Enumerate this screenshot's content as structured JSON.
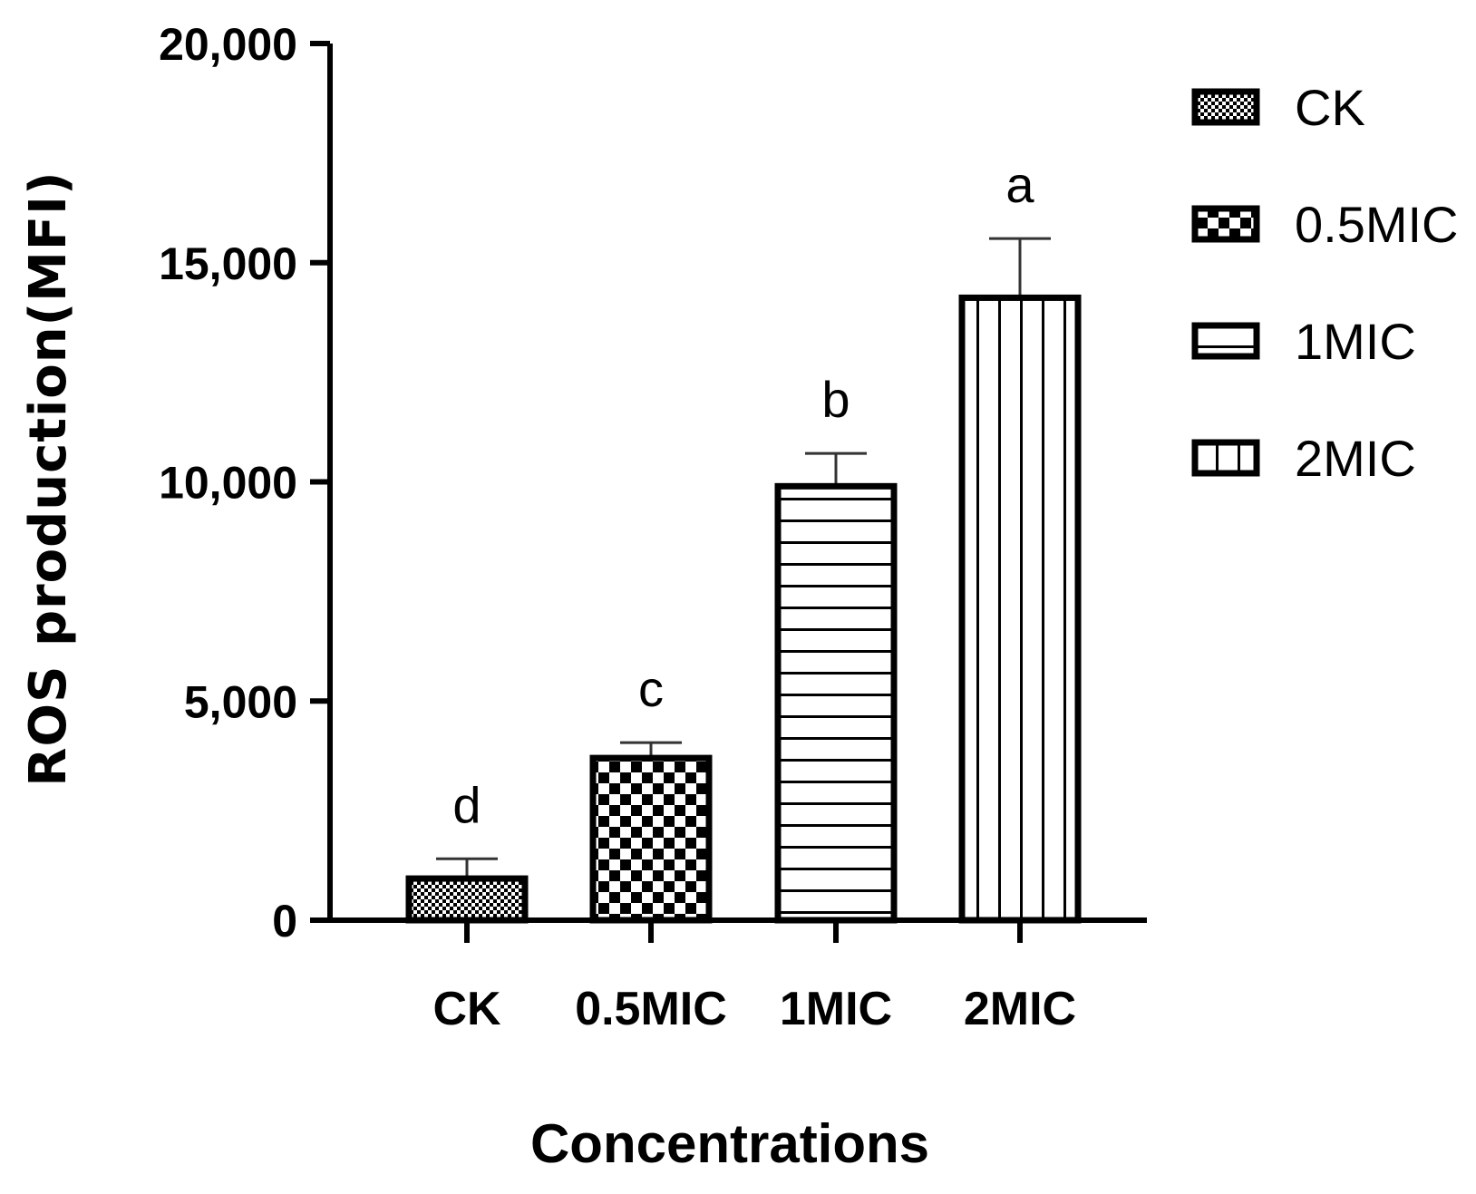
{
  "chart_data": {
    "type": "bar",
    "categories": [
      "CK",
      "0.5MIC",
      "1MIC",
      "2MIC"
    ],
    "values": [
      950,
      3700,
      9900,
      14200
    ],
    "errors": [
      450,
      350,
      750,
      1350
    ],
    "significance": [
      "d",
      "c",
      "b",
      "a"
    ],
    "patterns": [
      "small-check",
      "checker",
      "horizontal-lines",
      "vertical-lines"
    ],
    "xlabel": "Concentrations",
    "ylabel": "ROS production(MFI)",
    "ylim": [
      0,
      20000
    ],
    "yticks": [
      0,
      5000,
      10000,
      15000,
      20000
    ],
    "ytick_labels": [
      "0",
      "5,000",
      "10,000",
      "15,000",
      "20,000"
    ],
    "legend": [
      "CK",
      "0.5MIC",
      "1MIC",
      "2MIC"
    ],
    "legend_position": "top-right",
    "grid": false,
    "bar_color": "#ffffff",
    "edge_color": "#000000"
  }
}
